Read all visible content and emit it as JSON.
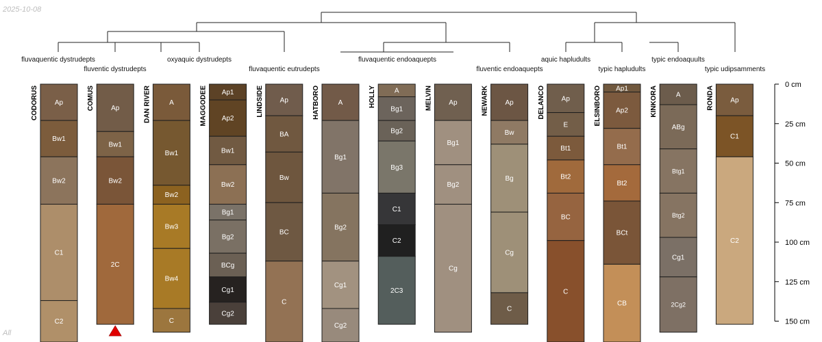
{
  "date_label": "2025-10-08",
  "footer_label": "All",
  "depth_axis": {
    "unit": "cm",
    "ticks": [
      {
        "value": 0,
        "label": "0 cm"
      },
      {
        "value": 25,
        "label": "25 cm"
      },
      {
        "value": 50,
        "label": "50 cm"
      },
      {
        "value": 75,
        "label": "75 cm"
      },
      {
        "value": 100,
        "label": "100 cm"
      },
      {
        "value": 125,
        "label": "125 cm"
      },
      {
        "value": 150,
        "label": "150 cm"
      }
    ]
  },
  "profiles": [
    {
      "name": "CODORUS",
      "subgroup": "fluvaquentic dystrudepts",
      "horizons": [
        {
          "name": "Ap",
          "top": 0,
          "bottom": 23,
          "color": "#7a5f48"
        },
        {
          "name": "Bw1",
          "top": 23,
          "bottom": 46,
          "color": "#7c5c3c"
        },
        {
          "name": "Bw2",
          "top": 46,
          "bottom": 76,
          "color": "#8c745c"
        },
        {
          "name": "C1",
          "top": 76,
          "bottom": 137,
          "color": "#ad8e6a"
        },
        {
          "name": "C2",
          "top": 137,
          "bottom": 165,
          "color": "#b09069"
        }
      ]
    },
    {
      "name": "COMUS",
      "subgroup": "fluventic dystrudepts",
      "marker": true,
      "horizons": [
        {
          "name": "Ap",
          "top": 0,
          "bottom": 30,
          "color": "#725c48"
        },
        {
          "name": "Bw1",
          "top": 30,
          "bottom": 46,
          "color": "#7d6347"
        },
        {
          "name": "Bw2",
          "top": 46,
          "bottom": 76,
          "color": "#7a5538"
        },
        {
          "name": "2C",
          "top": 76,
          "bottom": 152,
          "color": "#a0693c"
        }
      ]
    },
    {
      "name": "DAN RIVER",
      "subgroup": "oxyaquic dystrudepts",
      "horizons": [
        {
          "name": "A",
          "top": 0,
          "bottom": 23,
          "color": "#7a5a3a"
        },
        {
          "name": "Bw1",
          "top": 23,
          "bottom": 64,
          "color": "#765830"
        },
        {
          "name": "Bw2",
          "top": 64,
          "bottom": 76,
          "color": "#8c6220"
        },
        {
          "name": "Bw3",
          "top": 76,
          "bottom": 104,
          "color": "#a87a26"
        },
        {
          "name": "Bw4",
          "top": 104,
          "bottom": 142,
          "color": "#a87a26"
        },
        {
          "name": "C",
          "top": 142,
          "bottom": 157,
          "color": "#9c763e"
        }
      ]
    },
    {
      "name": "MAGGODEE",
      "subgroup": "oxyaquic dystrudepts",
      "horizons": [
        {
          "name": "Ap1",
          "top": 0,
          "bottom": 10,
          "color": "#5c4226"
        },
        {
          "name": "Ap2",
          "top": 10,
          "bottom": 33,
          "color": "#604424"
        },
        {
          "name": "Bw1",
          "top": 33,
          "bottom": 51,
          "color": "#715a42"
        },
        {
          "name": "Bw2",
          "top": 51,
          "bottom": 76,
          "color": "#8c7054"
        },
        {
          "name": "Bg1",
          "top": 76,
          "bottom": 86,
          "color": "#7a7268"
        },
        {
          "name": "Bg2",
          "top": 86,
          "bottom": 107,
          "color": "#7a7064"
        },
        {
          "name": "BCg",
          "top": 107,
          "bottom": 122,
          "color": "#6b6054"
        },
        {
          "name": "Cg1",
          "top": 122,
          "bottom": 138,
          "color": "#262220"
        },
        {
          "name": "Cg2",
          "top": 138,
          "bottom": 152,
          "color": "#4a403a"
        }
      ]
    },
    {
      "name": "LINDSIDE",
      "subgroup": "fluvaquentic eutrudepts",
      "horizons": [
        {
          "name": "Ap",
          "top": 0,
          "bottom": 20,
          "color": "#705c4c"
        },
        {
          "name": "BA",
          "top": 20,
          "bottom": 43,
          "color": "#705840"
        },
        {
          "name": "Bw",
          "top": 43,
          "bottom": 75,
          "color": "#6e563e"
        },
        {
          "name": "BC",
          "top": 75,
          "bottom": 112,
          "color": "#6e5842"
        },
        {
          "name": "C",
          "top": 112,
          "bottom": 165,
          "color": "#937254"
        }
      ]
    },
    {
      "name": "HATBORO",
      "subgroup": "fluvaquentic endoaquepts",
      "horizons": [
        {
          "name": "A",
          "top": 0,
          "bottom": 23,
          "color": "#725a48"
        },
        {
          "name": "Bg1",
          "top": 23,
          "bottom": 69,
          "color": "#817468"
        },
        {
          "name": "Bg2",
          "top": 69,
          "bottom": 112,
          "color": "#857460"
        },
        {
          "name": "Cg1",
          "top": 112,
          "bottom": 142,
          "color": "#a29280"
        },
        {
          "name": "Cg2",
          "top": 142,
          "bottom": 165,
          "color": "#988a7c"
        }
      ]
    },
    {
      "name": "HOLLY",
      "subgroup": "fluvaquentic endoaquepts",
      "horizons": [
        {
          "name": "A",
          "top": 0,
          "bottom": 8,
          "color": "#806c56"
        },
        {
          "name": "Bg1",
          "top": 8,
          "bottom": 23,
          "color": "#6c645c"
        },
        {
          "name": "Bg2",
          "top": 23,
          "bottom": 36,
          "color": "#6a6258"
        },
        {
          "name": "Bg3",
          "top": 36,
          "bottom": 69,
          "color": "#7a766a"
        },
        {
          "name": "C1",
          "top": 69,
          "bottom": 89,
          "color": "#363638"
        },
        {
          "name": "C2",
          "top": 89,
          "bottom": 109,
          "color": "#202020"
        },
        {
          "name": "2C3",
          "top": 109,
          "bottom": 152,
          "color": "#545e5c"
        }
      ]
    },
    {
      "name": "MELVIN",
      "subgroup": "fluvaquentic endoaquepts",
      "horizons": [
        {
          "name": "Ap",
          "top": 0,
          "bottom": 23,
          "color": "#706050"
        },
        {
          "name": "Bg1",
          "top": 23,
          "bottom": 51,
          "color": "#a09080"
        },
        {
          "name": "Bg2",
          "top": 51,
          "bottom": 76,
          "color": "#a09080"
        },
        {
          "name": "Cg",
          "top": 76,
          "bottom": 157,
          "color": "#a09080"
        }
      ]
    },
    {
      "name": "NEWARK",
      "subgroup": "fluventic endoaquepts",
      "horizons": [
        {
          "name": "Ap",
          "top": 0,
          "bottom": 23,
          "color": "#6c5644"
        },
        {
          "name": "Bw",
          "top": 23,
          "bottom": 38,
          "color": "#8f7a64"
        },
        {
          "name": "Bg",
          "top": 38,
          "bottom": 81,
          "color": "#9e9078"
        },
        {
          "name": "Cg",
          "top": 81,
          "bottom": 132,
          "color": "#9e9078"
        },
        {
          "name": "C",
          "top": 132,
          "bottom": 152,
          "color": "#6e5c48"
        }
      ]
    },
    {
      "name": "DELANCO",
      "subgroup": "aquic hapludults",
      "horizons": [
        {
          "name": "Ap",
          "top": 0,
          "bottom": 18,
          "color": "#705e4c"
        },
        {
          "name": "E",
          "top": 18,
          "bottom": 33,
          "color": "#735e48"
        },
        {
          "name": "Bt1",
          "top": 33,
          "bottom": 48,
          "color": "#7c5a3c"
        },
        {
          "name": "Bt2",
          "top": 48,
          "bottom": 69,
          "color": "#a06a3c"
        },
        {
          "name": "BC",
          "top": 69,
          "bottom": 99,
          "color": "#966440"
        },
        {
          "name": "C",
          "top": 99,
          "bottom": 165,
          "color": "#88502c"
        }
      ]
    },
    {
      "name": "ELSINBORO",
      "subgroup": "typic hapludults",
      "horizons": [
        {
          "name": "Ap1",
          "top": 0,
          "bottom": 5,
          "color": "#70583e"
        },
        {
          "name": "Ap2",
          "top": 5,
          "bottom": 28,
          "color": "#7c5a3e"
        },
        {
          "name": "Bt1",
          "top": 28,
          "bottom": 51,
          "color": "#946c4c"
        },
        {
          "name": "Bt2",
          "top": 51,
          "bottom": 74,
          "color": "#a46a3c"
        },
        {
          "name": "BCt",
          "top": 74,
          "bottom": 114,
          "color": "#7a5538"
        },
        {
          "name": "CB",
          "top": 114,
          "bottom": 165,
          "color": "#c38f58"
        }
      ]
    },
    {
      "name": "KINKORA",
      "subgroup": "typic endoaquults",
      "horizons": [
        {
          "name": "A",
          "top": 0,
          "bottom": 13,
          "color": "#6c5c4c"
        },
        {
          "name": "ABg",
          "top": 13,
          "bottom": 41,
          "color": "#7b6a58"
        },
        {
          "name": "Btg1",
          "top": 41,
          "bottom": 69,
          "color": "#867462"
        },
        {
          "name": "Btg2",
          "top": 69,
          "bottom": 97,
          "color": "#867462"
        },
        {
          "name": "Cg1",
          "top": 97,
          "bottom": 122,
          "color": "#7b7066"
        },
        {
          "name": "2Cg2",
          "top": 122,
          "bottom": 157,
          "color": "#7e7064"
        }
      ]
    },
    {
      "name": "RONDA",
      "subgroup": "typic udipsamments",
      "horizons": [
        {
          "name": "Ap",
          "top": 0,
          "bottom": 20,
          "color": "#7a5c3e"
        },
        {
          "name": "C1",
          "top": 20,
          "bottom": 46,
          "color": "#7c5426"
        },
        {
          "name": "C2",
          "top": 46,
          "bottom": 152,
          "color": "#caa87e"
        }
      ]
    }
  ],
  "subgroup_labels": [
    {
      "text": "fluvaquentic dystrudepts",
      "profile": 0
    },
    {
      "text": "fluventic dystrudepts",
      "profile": 1
    },
    {
      "text": "oxyaquic dystrudepts",
      "profile": 2
    },
    {
      "text": "fluvaquentic eutrudepts",
      "profile": 4
    },
    {
      "text": "fluvaquentic endoaquepts",
      "profile": 6
    },
    {
      "text": "fluventic endoaquepts",
      "profile": 8
    },
    {
      "text": "aquic hapludults",
      "profile": 9
    },
    {
      "text": "typic hapludults",
      "profile": 10
    },
    {
      "text": "typic endoaquults",
      "profile": 11
    },
    {
      "text": "typic udipsamments",
      "profile": 12
    }
  ]
}
